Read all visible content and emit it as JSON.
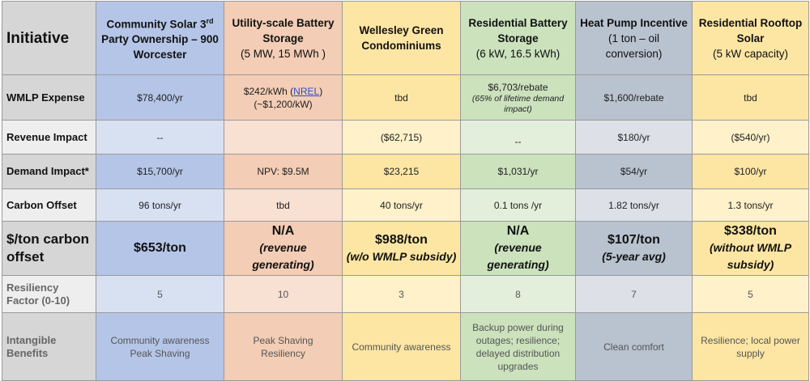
{
  "header": {
    "corner": "Initiative",
    "cols": [
      {
        "line1": "Community Solar 3",
        "sup": "rd",
        "line2": "Party Ownership – 900 Worcester"
      },
      {
        "line1": "Utility-scale Battery Storage",
        "line2": "(5 MW, 15 MWh )"
      },
      {
        "line1": "Wellesley Green Condominiums",
        "line2": ""
      },
      {
        "line1": "Residential Battery Storage",
        "line2": "(6 kW, 16.5 kWh)"
      },
      {
        "line1": "Heat Pump Incentive",
        "line2": "(1 ton – oil conversion)"
      },
      {
        "line1": "Residential Rooftop Solar",
        "line2": "(5 kW capacity)"
      }
    ]
  },
  "rows": {
    "expense": {
      "label": "WMLP Expense",
      "c1": "$78,400/yr",
      "c2a": "$242/kWh (",
      "c2link": "NREL",
      "c2b": ")",
      "c2c": "(~$1,200/kW)",
      "c3": "tbd",
      "c4": "$6,703/rebate",
      "c4note": "(65% of lifetime demand impact)",
      "c5": "$1,600/rebate",
      "c6": "tbd"
    },
    "revenue": {
      "label": "Revenue Impact",
      "c1": "--",
      "c2": "",
      "c3": "($62,715)",
      "c4": "--",
      "c5": "$180/yr",
      "c6": "($540/yr)"
    },
    "demand": {
      "label": "Demand Impact*",
      "c1": "$15,700/yr",
      "c2": "NPV: $9.5M",
      "c3": "$23,215",
      "c4": "$1,031/yr",
      "c5": "$54/yr",
      "c6": "$100/yr"
    },
    "carbon": {
      "label": "Carbon Offset",
      "c1": "96 tons/yr",
      "c2": "tbd",
      "c3": "40 tons/yr",
      "c4": "0.1 tons /yr",
      "c5": "1.82 tons/yr",
      "c6": "1.3 tons/yr"
    },
    "perton": {
      "label": "$/ton carbon offset",
      "c1": "$653/ton",
      "c2": "N/A",
      "c2note": "(revenue generating)",
      "c3": "$988/ton",
      "c3note": "(w/o WMLP subsidy)",
      "c4": "N/A",
      "c4note": "(revenue generating)",
      "c5": "$107/ton",
      "c5note": "(5-year avg)",
      "c6": "$338/ton",
      "c6note": "(without WMLP subsidy)"
    },
    "resiliency": {
      "label": "Resiliency Factor (0-10)",
      "c1": "5",
      "c2": "10",
      "c3": "3",
      "c4": "8",
      "c5": "7",
      "c6": "5"
    },
    "intangible": {
      "label": "Intangible Benefits",
      "c1a": "Community awareness",
      "c1b": "Peak Shaving",
      "c2a": "Peak Shaving",
      "c2b": "Resiliency",
      "c3": "Community awareness",
      "c4": "Backup power during outages; resilience; delayed distribution upgrades",
      "c5": "Clean comfort",
      "c6": "Resilience; local power supply"
    }
  }
}
